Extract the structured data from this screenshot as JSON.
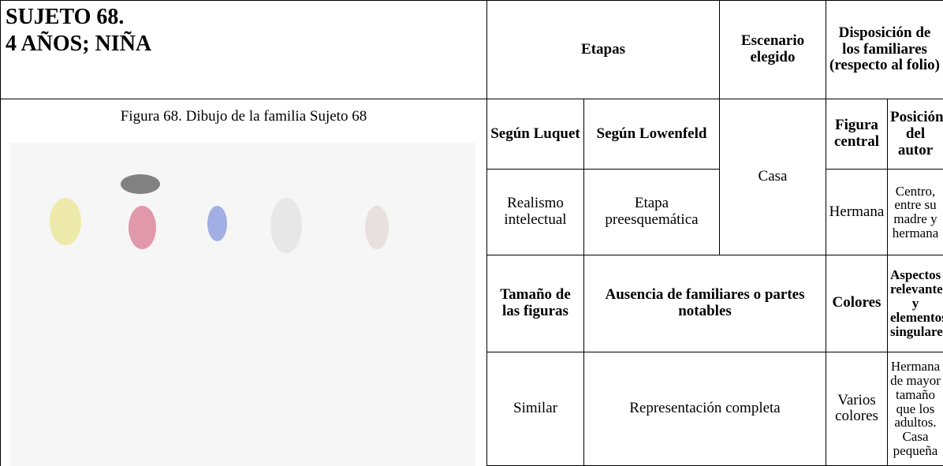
{
  "header": {
    "title_line1": "SUJETO 68.",
    "title_line2": "4 AÑOS; NIÑA"
  },
  "figure": {
    "caption": "Figura 68. Dibujo de la familia Sujeto 68"
  },
  "table": {
    "head": {
      "etapas": "Etapas",
      "escenario": "Escenario elegido",
      "disposicion_line1": "Disposición de los familiares",
      "disposicion_line2": "(respecto al folio)"
    },
    "subhead": {
      "luquet": "Según Luquet",
      "lowenfeld": "Según Lowenfeld",
      "figura_central": "Figura central",
      "posicion_autor": "Posición del autor"
    },
    "row1": {
      "luquet": "Realismo intelectual",
      "lowenfeld": "Etapa preesquemática",
      "escenario": "Casa",
      "figura_central": "Hermana",
      "posicion_autor": "Centro, entre su madre y hermana"
    },
    "subhead2": {
      "tamano": "Tamaño de las figuras",
      "ausencia": "Ausencia de familiares o partes notables",
      "colores": "Colores",
      "aspectos": "Aspectos relevantes y elementos singulares"
    },
    "row2": {
      "tamano": "Similar",
      "ausencia": "Representación completa",
      "colores": "Varios colores",
      "aspectos": "Hermana de mayor tamaño que los adultos. Casa pequeña"
    }
  }
}
